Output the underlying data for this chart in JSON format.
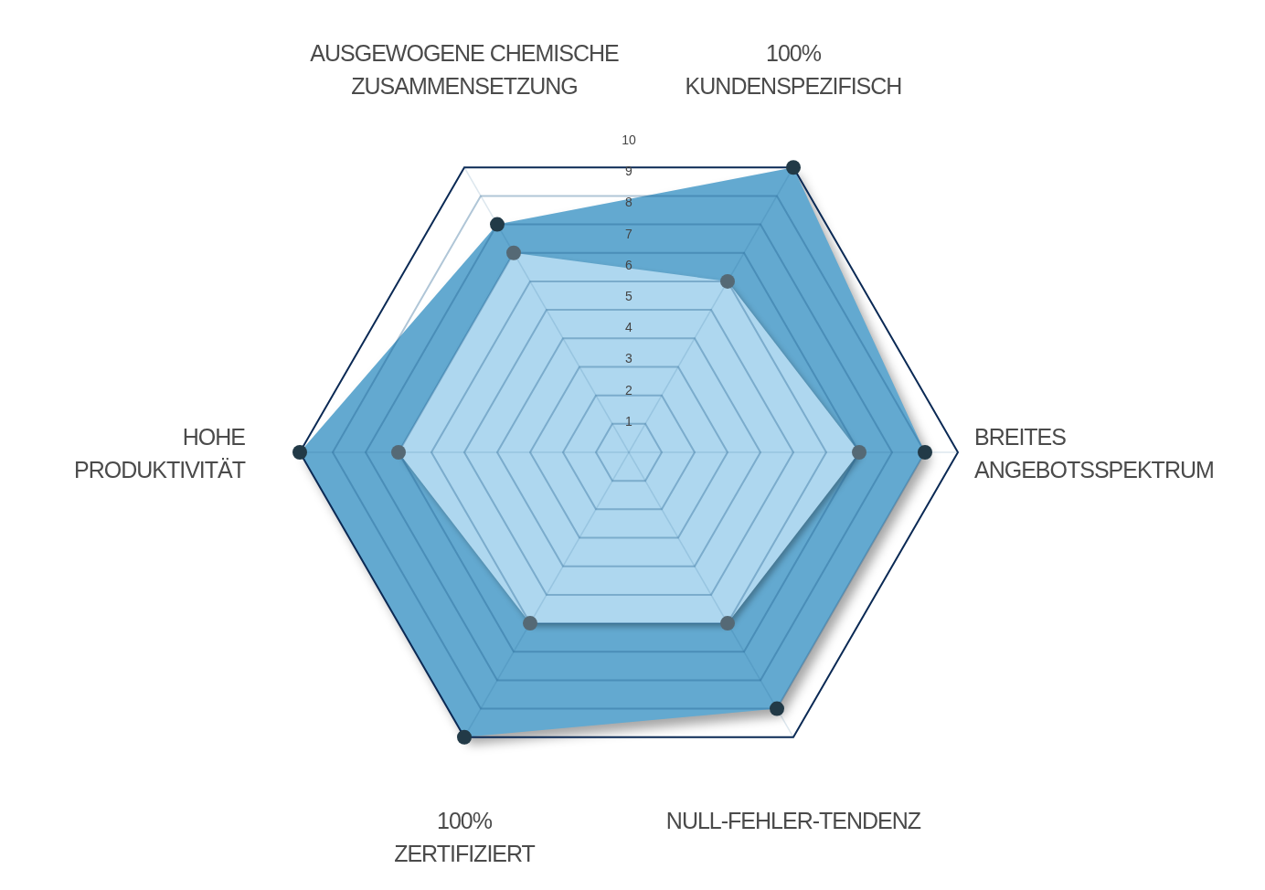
{
  "chart_data": {
    "type": "radar",
    "categories": [
      "100% KUNDENSPEZIFISCH",
      "BREITES ANGEBOTSSPEKTRUM",
      "NULL-FEHLER-TENDENZ",
      "100% ZERTIFIZIERT",
      "HOHE PRODUKTIVITÄT",
      "AUSGEWOGENE CHEMISCHE ZUSAMMENSETZUNG"
    ],
    "series": [
      {
        "color": "#63a9d0",
        "values": [
          10,
          9,
          9,
          10,
          10,
          8
        ]
      },
      {
        "color": "#aed7ef",
        "values": [
          6,
          7,
          6,
          6,
          7,
          7
        ]
      }
    ],
    "ylim": [
      0,
      10
    ],
    "yticks": [
      1,
      2,
      3,
      4,
      5,
      6,
      7,
      8,
      9,
      10
    ],
    "grid": true,
    "marker": "circle"
  }
}
